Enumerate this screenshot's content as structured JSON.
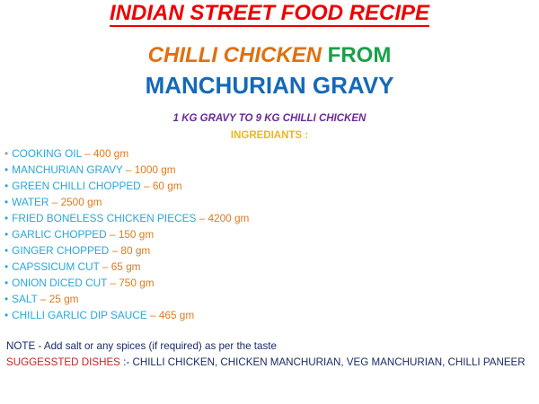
{
  "title": "INDIAN STREET FOOD RECIPE",
  "heading": {
    "part1": "CHILLI CHICKEN",
    "part2": "FROM",
    "line2": "MANCHURIAN GRAVY"
  },
  "subtitle": "1 KG GRAVY TO 9 KG CHILLI CHICKEN",
  "ingredients_label": "INGREDIANTS :",
  "ingredients": [
    {
      "name": "COOKING OIL",
      "qty": "400 gm"
    },
    {
      "name": "MANCHURIAN GRAVY",
      "qty": "1000 gm"
    },
    {
      "name": "GREEN CHILLI  CHOPPED",
      "qty": "60 gm"
    },
    {
      "name": "WATER",
      "qty": "2500 gm"
    },
    {
      "name": "FRIED BONELESS CHICKEN PIECES",
      "qty": "4200 gm"
    },
    {
      "name": "GARLIC CHOPPED",
      "qty": "150 gm"
    },
    {
      "name": "GINGER CHOPPED",
      "qty": "80 gm"
    },
    {
      "name": "CAPSSICUM CUT",
      "qty": "65 gm"
    },
    {
      "name": "ONION DICED CUT",
      "qty": "750 gm"
    },
    {
      "name": "SALT",
      "qty": "25 gm"
    },
    {
      "name": "CHILLI GARLIC DIP SAUCE",
      "qty": "465 gm"
    }
  ],
  "note": "NOTE  - Add salt or any spices (if required) as per the taste",
  "suggested": {
    "label": "SUGGESSTED DISHES",
    "text": ":- CHILLI CHICKEN, CHICKEN MANCHURIAN, VEG MANCHURIAN, CHILLI PANEER"
  },
  "colors": {
    "title": "#ee0000",
    "orange": "#e07010",
    "green": "#1aa04a",
    "blue": "#1569b8",
    "purple": "#6a2a9a",
    "yellow": "#e8b820",
    "cyan": "#2aa6dc",
    "navy": "#1a2a6a"
  }
}
